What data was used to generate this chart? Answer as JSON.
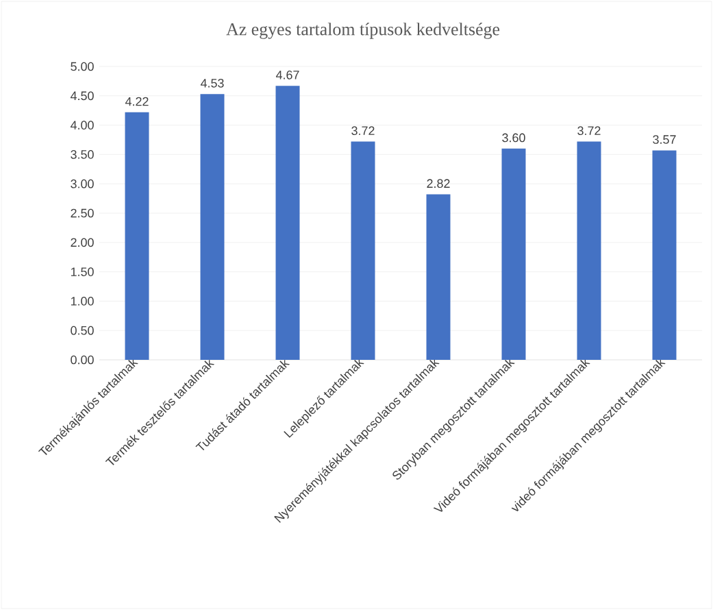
{
  "chart_data": {
    "type": "bar",
    "title": "Az egyes tartalom típusok kedveltsége",
    "categories": [
      "Termékajánlós tartalmak",
      "Termék tesztelős tartalmak",
      "Tudást átadó tartalmak",
      "Leleplező tartalmak",
      "Nyereményjátékkal kapcsolatos tartalmak",
      "Storyban megosztott tartalmak",
      "Videó formájában megosztott tartalmak",
      "videó formájában megosztott tartalmak"
    ],
    "values": [
      4.22,
      4.53,
      4.67,
      3.72,
      2.82,
      3.6,
      3.72,
      3.57
    ],
    "value_labels": [
      "4.22",
      "4.53",
      "4.67",
      "3.72",
      "2.82",
      "3.60",
      "3.72",
      "3.57"
    ],
    "color": "#4472c4",
    "ylim": [
      0,
      5
    ],
    "yticks": [
      {
        "value": 0,
        "label": "0.00"
      },
      {
        "value": 0.5,
        "label": "0.50"
      },
      {
        "value": 1,
        "label": "1.00"
      },
      {
        "value": 1.5,
        "label": "1.50"
      },
      {
        "value": 2,
        "label": "2.00"
      },
      {
        "value": 2.5,
        "label": "2.50"
      },
      {
        "value": 3,
        "label": "3.00"
      },
      {
        "value": 3.5,
        "label": "3.50"
      },
      {
        "value": 4,
        "label": "4.00"
      },
      {
        "value": 4.5,
        "label": "4.50"
      },
      {
        "value": 5,
        "label": "5.00"
      }
    ],
    "grid": "y"
  }
}
